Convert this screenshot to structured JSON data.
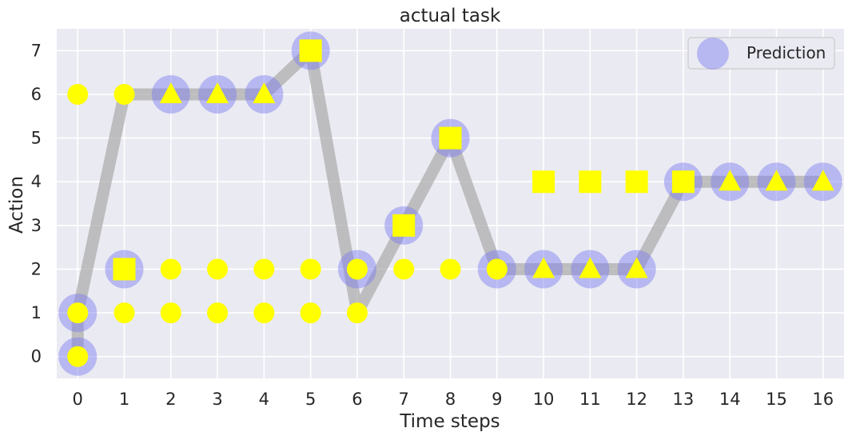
{
  "chart_data": {
    "type": "scatter",
    "title": "actual task",
    "xlabel": "Time steps",
    "ylabel": "Action",
    "xlim": [
      -0.45,
      16.45
    ],
    "ylim": [
      -0.5,
      7.5
    ],
    "xticks": [
      0,
      1,
      2,
      3,
      4,
      5,
      6,
      7,
      8,
      9,
      10,
      11,
      12,
      13,
      14,
      15,
      16
    ],
    "yticks": [
      0,
      1,
      2,
      3,
      4,
      5,
      6,
      7
    ],
    "grid": true,
    "legend": {
      "position": "top-right",
      "entries": [
        "Prediction"
      ]
    },
    "colors": {
      "background": "#EAEAF2",
      "grid": "#FFFFFF",
      "path": "#A9A9A9",
      "prediction": "#7B7BF0",
      "candidates": "#FFFF00",
      "text": "#262626"
    },
    "path": {
      "x": [
        0,
        0,
        1,
        2,
        3,
        4,
        5,
        6,
        7,
        8,
        9,
        10,
        11,
        12,
        13,
        14,
        15,
        16
      ],
      "y": [
        0,
        1,
        6,
        6,
        6,
        6,
        7,
        1,
        3,
        5,
        2,
        2,
        2,
        2,
        4,
        4,
        4,
        4
      ]
    },
    "series": [
      {
        "name": "Prediction",
        "marker": "circle",
        "points": [
          [
            0,
            0
          ],
          [
            0,
            1
          ],
          [
            1,
            2
          ],
          [
            2,
            6
          ],
          [
            3,
            6
          ],
          [
            4,
            6
          ],
          [
            5,
            7
          ],
          [
            6,
            2
          ],
          [
            7,
            3
          ],
          [
            8,
            5
          ],
          [
            9,
            2
          ],
          [
            10,
            2
          ],
          [
            11,
            2
          ],
          [
            12,
            2
          ],
          [
            13,
            4
          ],
          [
            14,
            4
          ],
          [
            15,
            4
          ],
          [
            16,
            4
          ]
        ]
      },
      {
        "marker": "circle",
        "points": [
          [
            0,
            6
          ],
          [
            0,
            1
          ],
          [
            0,
            0
          ],
          [
            1,
            6
          ],
          [
            1,
            1
          ],
          [
            2,
            2
          ],
          [
            2,
            1
          ],
          [
            3,
            2
          ],
          [
            3,
            1
          ],
          [
            4,
            2
          ],
          [
            4,
            1
          ],
          [
            5,
            2
          ],
          [
            5,
            1
          ],
          [
            6,
            2
          ],
          [
            6,
            1
          ],
          [
            7,
            2
          ],
          [
            8,
            2
          ],
          [
            9,
            2
          ]
        ]
      },
      {
        "marker": "square",
        "points": [
          [
            1,
            2
          ],
          [
            5,
            7
          ],
          [
            7,
            3
          ],
          [
            8,
            5
          ],
          [
            10,
            4
          ],
          [
            11,
            4
          ],
          [
            12,
            4
          ],
          [
            13,
            4
          ]
        ]
      },
      {
        "marker": "triangle",
        "points": [
          [
            2,
            6
          ],
          [
            3,
            6
          ],
          [
            4,
            6
          ],
          [
            10,
            2
          ],
          [
            11,
            2
          ],
          [
            12,
            2
          ],
          [
            14,
            4
          ],
          [
            15,
            4
          ],
          [
            16,
            4
          ]
        ]
      }
    ]
  }
}
